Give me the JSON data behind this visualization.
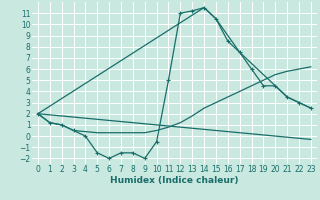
{
  "xlabel": "Humidex (Indice chaleur)",
  "bg_color": "#c8e8e0",
  "line_color": "#1a6e6a",
  "grid_color": "#ffffff",
  "xlim": [
    -0.5,
    23.5
  ],
  "ylim": [
    -2.5,
    12
  ],
  "xticks": [
    0,
    1,
    2,
    3,
    4,
    5,
    6,
    7,
    8,
    9,
    10,
    11,
    12,
    13,
    14,
    15,
    16,
    17,
    18,
    19,
    20,
    21,
    22,
    23
  ],
  "yticks": [
    -2,
    -1,
    0,
    1,
    2,
    3,
    4,
    5,
    6,
    7,
    8,
    9,
    10,
    11
  ],
  "series": [
    {
      "x": [
        0,
        1,
        2,
        3,
        4,
        5,
        6,
        7,
        8,
        9,
        10,
        11,
        12,
        13,
        14,
        15,
        16,
        17,
        18,
        19,
        20,
        21,
        22,
        23
      ],
      "y": [
        2,
        1.2,
        1.0,
        0.5,
        0.0,
        -1.5,
        -2.0,
        -1.5,
        -1.5,
        -2.0,
        -0.5,
        5.0,
        11.0,
        11.2,
        11.5,
        10.5,
        8.5,
        7.5,
        6.0,
        4.5,
        4.5,
        3.5,
        3.0,
        2.5
      ],
      "marker": true
    },
    {
      "x": [
        0,
        14,
        15,
        17,
        19,
        20,
        21,
        22,
        23
      ],
      "y": [
        2,
        11.5,
        10.5,
        7.5,
        5.5,
        4.5,
        3.5,
        3.0,
        2.5
      ],
      "marker": false
    },
    {
      "x": [
        0,
        1,
        2,
        3,
        4,
        5,
        6,
        7,
        8,
        9,
        10,
        11,
        12,
        13,
        14,
        15,
        16,
        17,
        18,
        19,
        20,
        21,
        22,
        23
      ],
      "y": [
        2,
        1.2,
        1.0,
        0.5,
        0.4,
        0.3,
        0.3,
        0.3,
        0.3,
        0.3,
        0.5,
        0.8,
        1.2,
        1.8,
        2.5,
        3.0,
        3.5,
        4.0,
        4.5,
        5.0,
        5.5,
        5.8,
        6.0,
        6.2
      ],
      "marker": false
    },
    {
      "x": [
        0,
        23
      ],
      "y": [
        2.0,
        -0.3
      ],
      "marker": false
    }
  ],
  "tick_fontsize": 5.5,
  "xlabel_fontsize": 6.5
}
